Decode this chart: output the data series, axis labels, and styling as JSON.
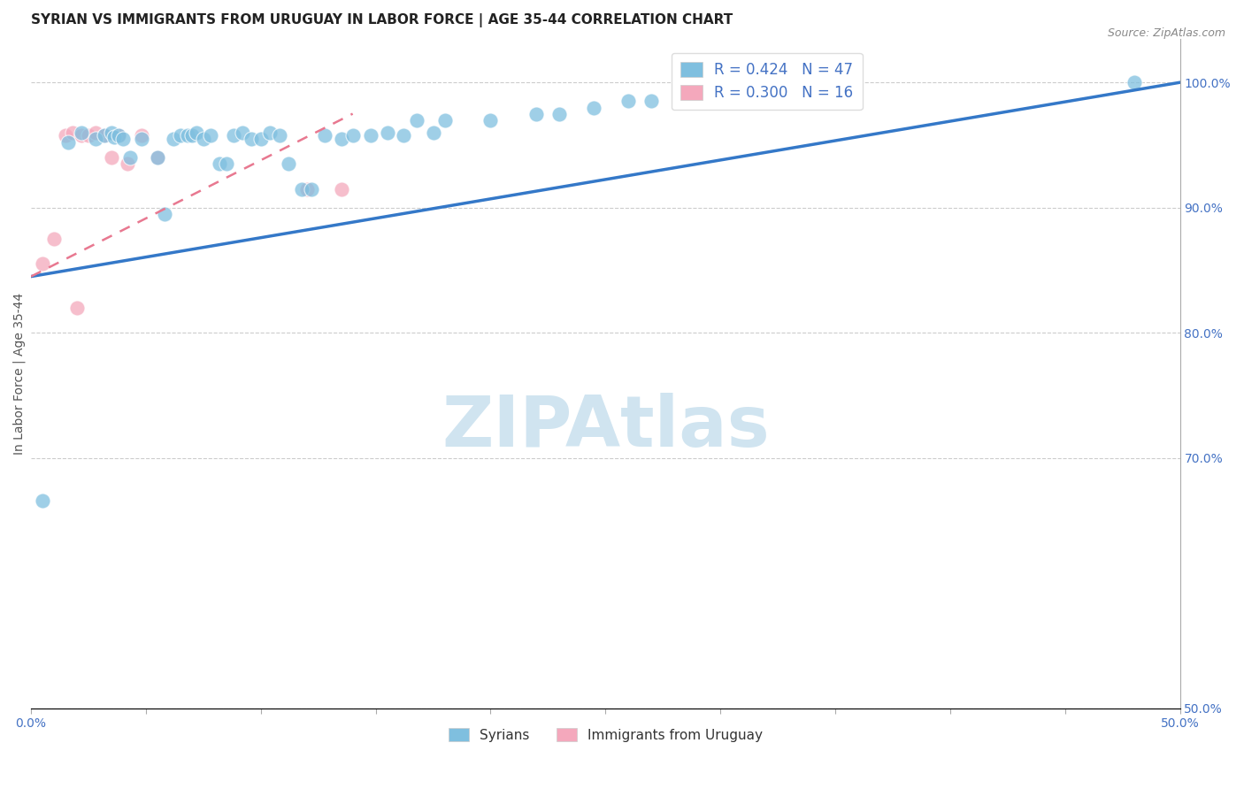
{
  "title": "SYRIAN VS IMMIGRANTS FROM URUGUAY IN LABOR FORCE | AGE 35-44 CORRELATION CHART",
  "source": "Source: ZipAtlas.com",
  "xlabel": "",
  "ylabel": "In Labor Force | Age 35-44",
  "xlim": [
    0.0,
    0.5
  ],
  "ylim": [
    0.5,
    1.035
  ],
  "xticks": [
    0.0,
    0.05,
    0.1,
    0.15,
    0.2,
    0.25,
    0.3,
    0.35,
    0.4,
    0.45,
    0.5
  ],
  "xticklabels": [
    "0.0%",
    "",
    "",
    "",
    "",
    "",
    "",
    "",
    "",
    "",
    "50.0%"
  ],
  "yticks_right": [
    0.5,
    0.7,
    0.8,
    0.9,
    1.0
  ],
  "ytick_right_labels": [
    "50.0%",
    "70.0%",
    "80.0%",
    "90.0%",
    "100.0%"
  ],
  "legend_blue_text": "R = 0.424   N = 47",
  "legend_pink_text": "R = 0.300   N = 16",
  "syrians_color": "#7fbfdf",
  "uruguay_color": "#f4a8bc",
  "regression_blue_color": "#3478c8",
  "regression_pink_color": "#e87890",
  "watermark_text": "ZIPAtlas",
  "watermark_color": "#d0e4f0",
  "title_fontsize": 11,
  "axis_label_fontsize": 10,
  "tick_fontsize": 10,
  "syrians_x": [
    0.005,
    0.016,
    0.022,
    0.028,
    0.032,
    0.035,
    0.036,
    0.038,
    0.04,
    0.043,
    0.048,
    0.055,
    0.058,
    0.062,
    0.065,
    0.068,
    0.07,
    0.072,
    0.075,
    0.078,
    0.082,
    0.085,
    0.088,
    0.092,
    0.096,
    0.1,
    0.104,
    0.108,
    0.112,
    0.118,
    0.122,
    0.128,
    0.135,
    0.14,
    0.148,
    0.155,
    0.162,
    0.168,
    0.175,
    0.18,
    0.2,
    0.22,
    0.23,
    0.245,
    0.26,
    0.27,
    0.48
  ],
  "syrians_y": [
    0.666,
    0.952,
    0.96,
    0.955,
    0.958,
    0.96,
    0.956,
    0.958,
    0.955,
    0.94,
    0.955,
    0.94,
    0.895,
    0.955,
    0.958,
    0.958,
    0.958,
    0.96,
    0.955,
    0.958,
    0.935,
    0.935,
    0.958,
    0.96,
    0.955,
    0.955,
    0.96,
    0.958,
    0.935,
    0.915,
    0.915,
    0.958,
    0.955,
    0.958,
    0.958,
    0.96,
    0.958,
    0.97,
    0.96,
    0.97,
    0.97,
    0.975,
    0.975,
    0.98,
    0.985,
    0.985,
    1.0
  ],
  "uruguay_x": [
    0.005,
    0.01,
    0.015,
    0.018,
    0.022,
    0.025,
    0.028,
    0.032,
    0.035,
    0.038,
    0.042,
    0.048,
    0.055,
    0.12,
    0.135,
    0.02
  ],
  "uruguay_y": [
    0.855,
    0.875,
    0.958,
    0.96,
    0.958,
    0.958,
    0.96,
    0.958,
    0.94,
    0.958,
    0.935,
    0.958,
    0.94,
    0.915,
    0.915,
    0.82
  ],
  "regression_blue_x0": 0.0,
  "regression_blue_y0": 0.845,
  "regression_blue_x1": 0.5,
  "regression_blue_y1": 1.0,
  "regression_pink_x0": 0.0,
  "regression_pink_y0": 0.845,
  "regression_pink_x1": 0.14,
  "regression_pink_y1": 0.975
}
